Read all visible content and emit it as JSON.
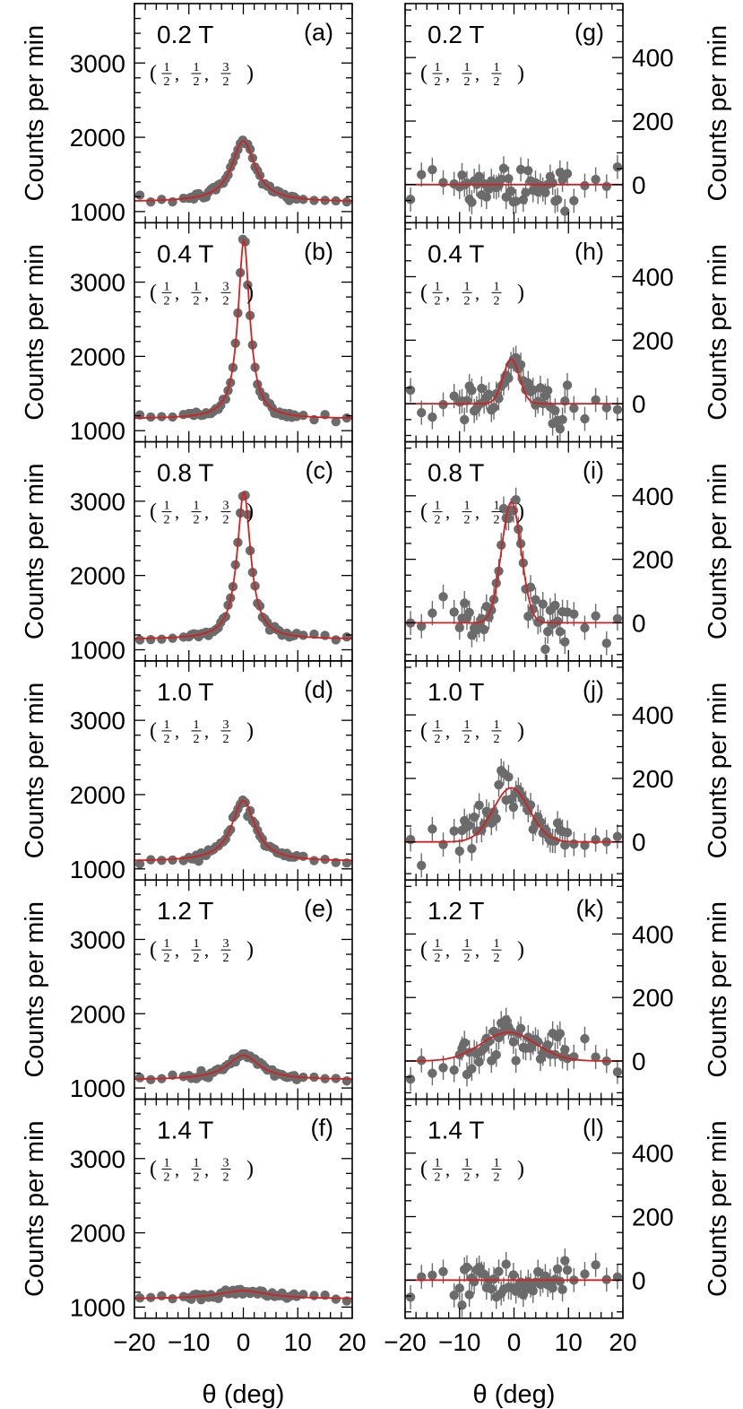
{
  "chart_data": {
    "type": "scatter",
    "title": "",
    "x_axis_label": "θ (deg)",
    "left_ylabel": "Counts per min",
    "right_ylabel": "Counts per min",
    "xlim": [
      -20,
      20
    ],
    "xticks": [
      -20,
      -10,
      0,
      10,
      20
    ],
    "xtick_labels": [
      "−20",
      "−10",
      "0",
      "10",
      "20"
    ],
    "left_ylim": [
      850,
      3800
    ],
    "left_yticks": [
      1000,
      2000,
      3000
    ],
    "right_ylim": [
      -120,
      570
    ],
    "right_yticks": [
      0,
      200,
      400
    ],
    "colors": {
      "data": "#6b6b6b",
      "fit": "#d42020",
      "axes": "#000000"
    },
    "left_column": {
      "wavevector": {
        "h": "1/2",
        "k": "1/2",
        "l": "3/2"
      },
      "panels": [
        {
          "label": "(a)",
          "field": "0.2 T",
          "fit": {
            "baseline": 1130,
            "amplitude": 820,
            "center": 0,
            "width": 2.6,
            "shape": "lorentzian"
          }
        },
        {
          "label": "(b)",
          "field": "0.4 T",
          "fit": {
            "baseline": 1160,
            "amplitude": 2400,
            "center": 0.1,
            "width": 1.3,
            "shape": "lorentzian"
          }
        },
        {
          "label": "(c)",
          "field": "0.8 T",
          "fit": {
            "baseline": 1140,
            "amplitude": 1980,
            "center": 0.1,
            "width": 1.5,
            "shape": "lorentzian"
          }
        },
        {
          "label": "(d)",
          "field": "1.0 T",
          "fit": {
            "baseline": 1100,
            "amplitude": 820,
            "center": 0,
            "width": 2.6,
            "shape": "lorentzian"
          }
        },
        {
          "label": "(e)",
          "field": "1.2 T",
          "fit": {
            "baseline": 1110,
            "amplitude": 330,
            "center": 0,
            "width": 3.6,
            "shape": "lorentzian"
          }
        },
        {
          "label": "(f)",
          "field": "1.4 T",
          "fit": {
            "baseline": 1110,
            "amplitude": 110,
            "center": 0,
            "width": 5.5,
            "shape": "lorentzian"
          }
        }
      ]
    },
    "right_column": {
      "wavevector": {
        "h": "1/2",
        "k": "1/2",
        "l": "1/2"
      },
      "panels": [
        {
          "label": "(g)",
          "field": "0.2 T",
          "fit": {
            "baseline": 0,
            "amplitude": 0,
            "center": 0,
            "width": 1,
            "shape": "gaussian"
          }
        },
        {
          "label": "(h)",
          "field": "0.4 T",
          "fit": {
            "baseline": 0,
            "amplitude": 140,
            "center": -0.5,
            "width": 1.5,
            "shape": "gaussian"
          }
        },
        {
          "label": "(i)",
          "field": "0.8 T",
          "fit": {
            "baseline": 0,
            "amplitude": 380,
            "center": -0.5,
            "width": 1.8,
            "shape": "gaussian"
          }
        },
        {
          "label": "(j)",
          "field": "1.0 T",
          "fit": {
            "baseline": 0,
            "amplitude": 170,
            "center": -0.5,
            "width": 3.3,
            "shape": "gaussian"
          }
        },
        {
          "label": "(k)",
          "field": "1.2 T",
          "fit": {
            "baseline": 0,
            "amplitude": 90,
            "center": -1,
            "width": 5,
            "shape": "gaussian"
          }
        },
        {
          "label": "(l)",
          "field": "1.4 T",
          "fit": {
            "baseline": 0,
            "amplitude": 0,
            "center": 0,
            "width": 1,
            "shape": "gaussian"
          }
        }
      ]
    }
  }
}
